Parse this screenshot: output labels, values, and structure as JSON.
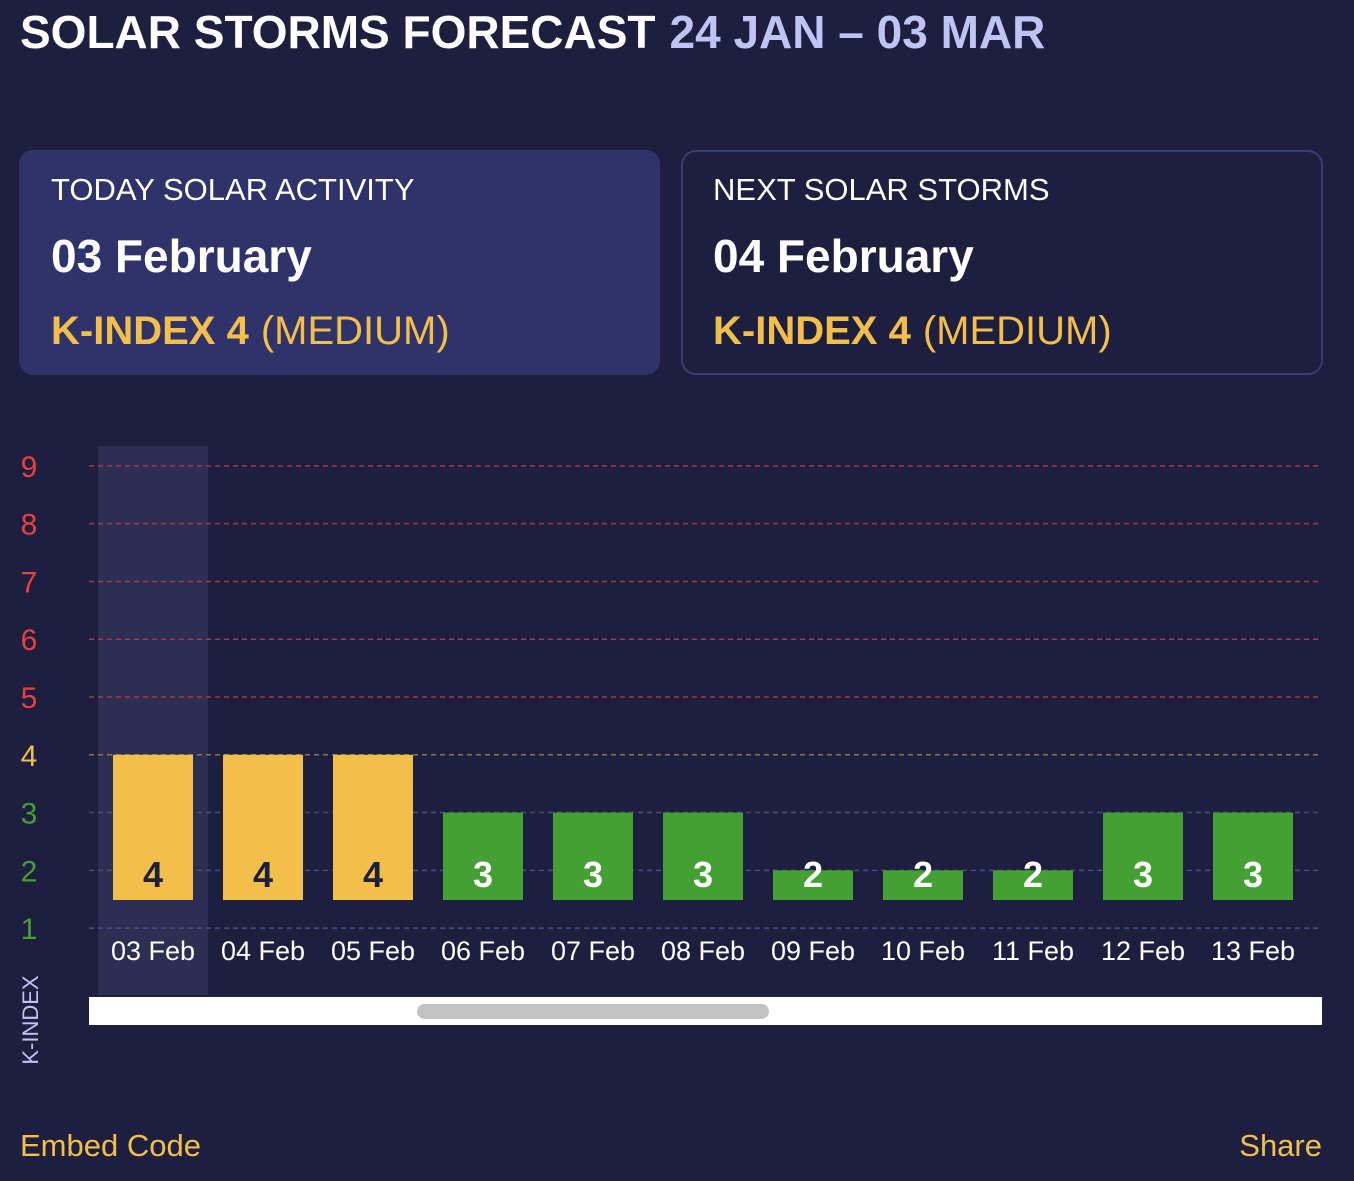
{
  "header": {
    "title": "SOLAR STORMS FORECAST",
    "range": "24 JAN – 03 MAR"
  },
  "cards": [
    {
      "label": "TODAY SOLAR ACTIVITY",
      "date": "03 February",
      "index": "K-INDEX 4",
      "level": "(MEDIUM)"
    },
    {
      "label": "NEXT SOLAR STORMS",
      "date": "04 February",
      "index": "K-INDEX 4",
      "level": "(MEDIUM)"
    }
  ],
  "chart_data": {
    "type": "bar",
    "y_label": "K-INDEX",
    "categories": [
      "03 Feb",
      "04 Feb",
      "05 Feb",
      "06 Feb",
      "07 Feb",
      "08 Feb",
      "09 Feb",
      "10 Feb",
      "11 Feb",
      "12 Feb",
      "13 Feb"
    ],
    "values": [
      4,
      4,
      4,
      3,
      3,
      3,
      2,
      2,
      2,
      3,
      3
    ],
    "colors": [
      "#f2bf4a",
      "#f2bf4a",
      "#f2bf4a",
      "#44a032",
      "#44a032",
      "#44a032",
      "#44a032",
      "#44a032",
      "#44a032",
      "#44a032",
      "#44a032"
    ],
    "value_label_colors": [
      "#1e1f3f",
      "#1e1f3f",
      "#1e1f3f",
      "#ffffff",
      "#ffffff",
      "#ffffff",
      "#ffffff",
      "#ffffff",
      "#ffffff",
      "#ffffff",
      "#ffffff"
    ],
    "highlight": 0,
    "ylim": [
      0.5,
      9.5
    ],
    "yticks": [
      1,
      2,
      3,
      4,
      5,
      6,
      7,
      8,
      9
    ],
    "ytick_colors": [
      "#44a032",
      "#44a032",
      "#44a032",
      "#f2bf4a",
      "#e8413f",
      "#e8413f",
      "#e8413f",
      "#e8413f",
      "#e8413f"
    ],
    "grid_colors": [
      "#4a4d85",
      "#4a4d85",
      "#4a4d85",
      "#8a7a45",
      "#a3394a",
      "#a3394a",
      "#a3394a",
      "#a3394a",
      "#a3394a"
    ],
    "grid": true
  },
  "footer": {
    "embed": "Embed Code",
    "share": "Share"
  }
}
